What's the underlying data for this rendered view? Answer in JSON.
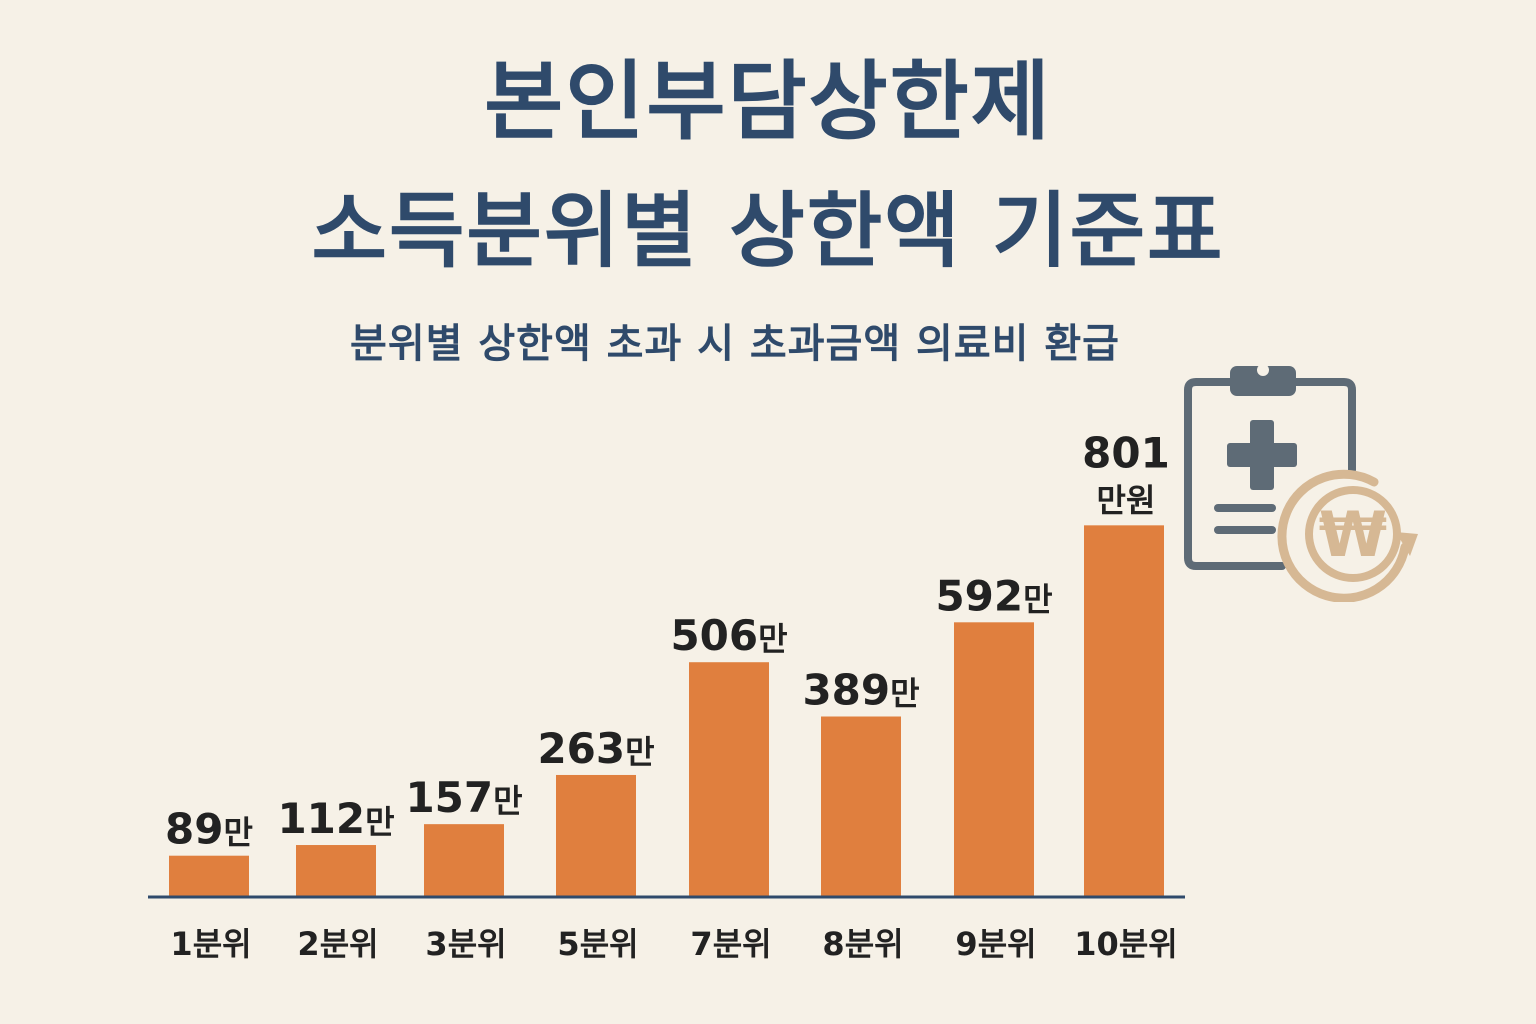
{
  "header": {
    "title_line1": "본인부담상한제",
    "title_line2": "소득분위별 상한액 기준표",
    "subtitle": "분위별 상한액 초과 시 초과금액 의료비 환급"
  },
  "colors": {
    "background": "#f6f1e7",
    "title": "#2f4a6b",
    "bar": "#e07f3e",
    "axis": "#2f4a6b",
    "label": "#222222",
    "icon_clipboard": "#5e6b76",
    "icon_won": "#d6b894"
  },
  "icons": [
    "medical-clipboard-icon",
    "won-refund-icon"
  ],
  "chart_data": {
    "type": "bar",
    "title": "",
    "xlabel": "",
    "ylabel": "",
    "categories": [
      "1분위",
      "2분위",
      "3분위",
      "5분위",
      "7분위",
      "8분위",
      "9분위",
      "10분위"
    ],
    "values": [
      89,
      112,
      157,
      263,
      506,
      389,
      592,
      801
    ],
    "value_labels": [
      {
        "number": "89",
        "unit": "만"
      },
      {
        "number": "112",
        "unit": "만"
      },
      {
        "number": "157",
        "unit": "만"
      },
      {
        "number": "263",
        "unit": "만"
      },
      {
        "number": "506",
        "unit": "만"
      },
      {
        "number": "389",
        "unit": "만"
      },
      {
        "number": "592",
        "unit": "만"
      },
      {
        "number": "801",
        "unit": "만원"
      }
    ],
    "grid": false,
    "legend": "none"
  }
}
